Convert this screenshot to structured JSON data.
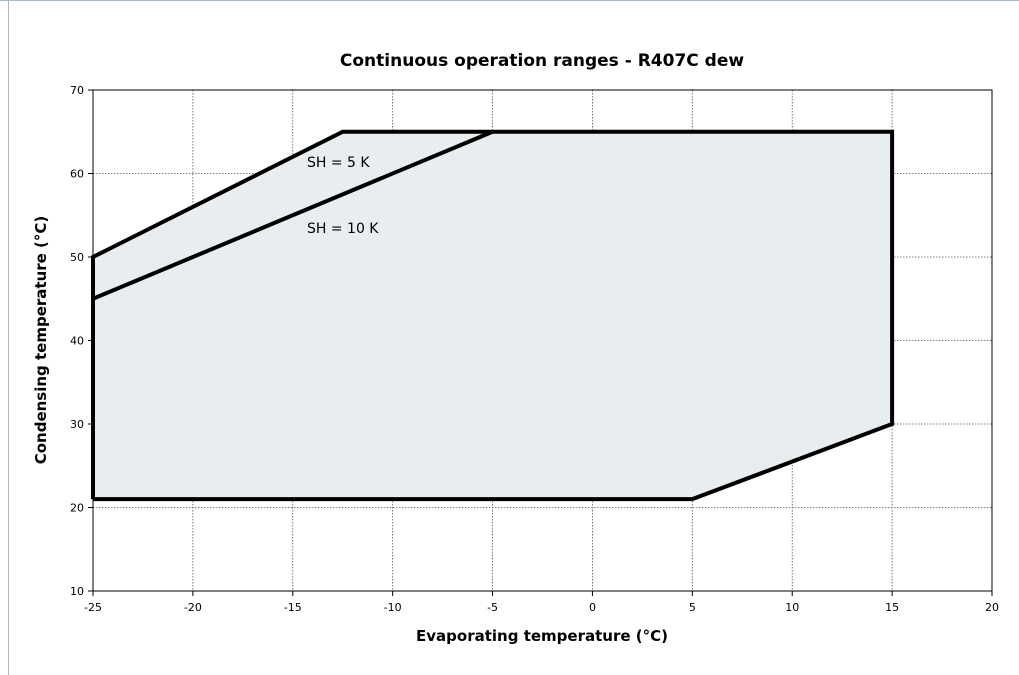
{
  "chart_data": {
    "type": "line",
    "title": "Continuous operation ranges - R407C dew",
    "x_label": "Evaporating temperature (°C)",
    "y_label": "Condensing temperature (°C)",
    "series": [
      {
        "name": "SH = 5 K",
        "color": "#000000",
        "fill": "#e8eef0",
        "x": [
          -25,
          -25,
          -12.5,
          15,
          15,
          5,
          -25
        ],
        "values": [
          21,
          50,
          65,
          65,
          30,
          21,
          21
        ]
      },
      {
        "name": "SH = 10 K",
        "color": "#000000",
        "x": [
          -25,
          -5
        ],
        "values": [
          45,
          65
        ]
      }
    ],
    "xlim": [
      -25,
      20
    ],
    "xticks": [
      -25,
      -20,
      -15,
      -10,
      -5,
      0,
      5,
      10,
      15,
      20
    ],
    "ylim": [
      10,
      70
    ],
    "yticks": [
      10,
      20,
      30,
      40,
      50,
      60,
      70
    ],
    "grid": true
  }
}
